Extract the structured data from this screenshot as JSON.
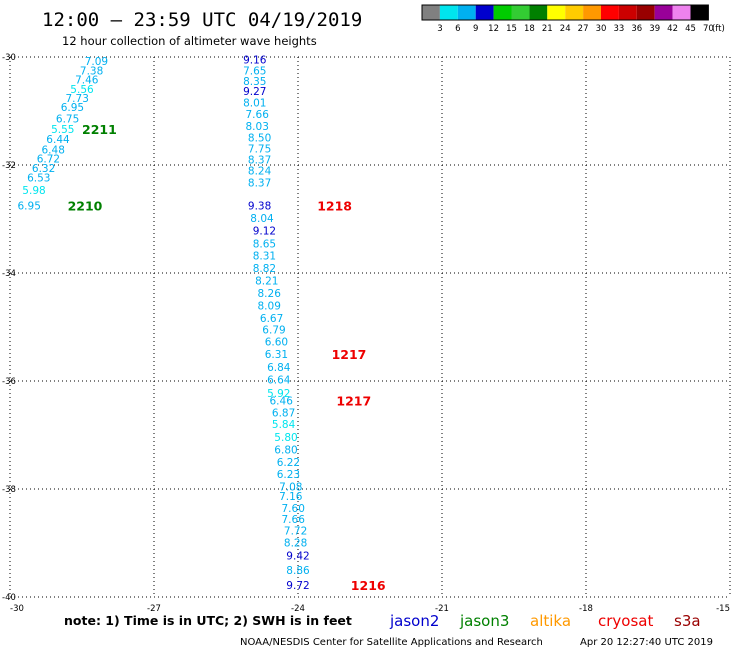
{
  "chart_data": {
    "type": "scatter",
    "title": "12:00 – 23:59 UTC 04/19/2019",
    "subtitle": "12 hour collection of altimeter wave heights",
    "xlim": [
      -30,
      -15
    ],
    "ylim": [
      -40,
      -30
    ],
    "x_ticks": [
      "-30",
      "-27",
      "-24",
      "-21",
      "-18",
      "-15"
    ],
    "y_ticks": [
      "-30",
      "-32",
      "-34",
      "-36",
      "-38",
      "-40"
    ],
    "grid": true,
    "colorbar": {
      "labels": [
        "3",
        "6",
        "9",
        "12",
        "15",
        "18",
        "21",
        "24",
        "27",
        "30",
        "33",
        "36",
        "39",
        "42",
        "45",
        "70"
      ],
      "unit": "(ft)",
      "colors": [
        "#808080",
        "#00e5ee",
        "#00b0f0",
        "#0000cd",
        "#00cc00",
        "#33cc33",
        "#008000",
        "#ffff00",
        "#ffcc00",
        "#ff9900",
        "#ff0000",
        "#cc0000",
        "#990000",
        "#990099",
        "#ee82ee",
        "#000000"
      ]
    },
    "series": [
      {
        "name": "2211",
        "satellite": "jason3",
        "label_pos": {
          "x": -28.5,
          "y": -31.33
        },
        "points": [
          {
            "x": -28.2,
            "y": -30.07,
            "v": "7.09"
          },
          {
            "x": -28.3,
            "y": -30.25,
            "v": "7.38"
          },
          {
            "x": -28.4,
            "y": -30.42,
            "v": "7.46"
          },
          {
            "x": -28.5,
            "y": -30.59,
            "v": "5.56"
          },
          {
            "x": -28.6,
            "y": -30.76,
            "v": "7.73"
          },
          {
            "x": -28.7,
            "y": -30.93,
            "v": "6.95"
          },
          {
            "x": -28.8,
            "y": -31.14,
            "v": "6.75"
          },
          {
            "x": -28.9,
            "y": -31.33,
            "v": "5.55"
          },
          {
            "x": -29.0,
            "y": -31.52,
            "v": "6.44"
          },
          {
            "x": -29.1,
            "y": -31.71,
            "v": "6.48"
          }
        ]
      },
      {
        "name": "2210",
        "satellite": "jason3",
        "label_pos": {
          "x": -28.8,
          "y": -32.75
        },
        "points": [
          {
            "x": -29.2,
            "y": -31.88,
            "v": "6.72"
          },
          {
            "x": -29.3,
            "y": -32.06,
            "v": "6.32"
          },
          {
            "x": -29.4,
            "y": -32.23,
            "v": "6.53"
          },
          {
            "x": -29.5,
            "y": -32.46,
            "v": "5.98"
          },
          {
            "x": -29.6,
            "y": -32.75,
            "v": "6.95"
          }
        ]
      },
      {
        "name": "1218",
        "satellite": "cryosat",
        "label_pos": {
          "x": -23.6,
          "y": -32.75
        },
        "points": [
          {
            "x": -24.9,
            "y": -30.05,
            "v": "9.16"
          },
          {
            "x": -24.9,
            "y": -30.25,
            "v": "7.65"
          },
          {
            "x": -24.9,
            "y": -30.44,
            "v": "8.35"
          },
          {
            "x": -24.9,
            "y": -30.63,
            "v": "9.27"
          },
          {
            "x": -24.9,
            "y": -30.84,
            "v": "8.01"
          },
          {
            "x": -24.85,
            "y": -31.06,
            "v": "7.66"
          },
          {
            "x": -24.85,
            "y": -31.28,
            "v": "8.03"
          },
          {
            "x": -24.8,
            "y": -31.49,
            "v": "8.50"
          },
          {
            "x": -24.8,
            "y": -31.69,
            "v": "7.75"
          },
          {
            "x": -24.8,
            "y": -31.9,
            "v": "8.37"
          },
          {
            "x": -24.8,
            "y": -32.1,
            "v": "8.24"
          },
          {
            "x": -24.8,
            "y": -32.32,
            "v": "8.37"
          },
          {
            "x": -24.8,
            "y": -32.75,
            "v": "9.38"
          },
          {
            "x": -24.75,
            "y": -32.98,
            "v": "8.04"
          },
          {
            "x": -24.7,
            "y": -33.21,
            "v": "9.12"
          },
          {
            "x": -24.7,
            "y": -33.45,
            "v": "8.65"
          },
          {
            "x": -24.7,
            "y": -33.68,
            "v": "8.31"
          }
        ]
      },
      {
        "name": "1217",
        "satellite": "cryosat",
        "label_pos": {
          "x": -23.3,
          "y": -35.5
        },
        "points": [
          {
            "x": -24.7,
            "y": -33.91,
            "v": "8.82"
          },
          {
            "x": -24.65,
            "y": -34.14,
            "v": "8.21"
          },
          {
            "x": -24.6,
            "y": -34.37,
            "v": "8.26"
          },
          {
            "x": -24.6,
            "y": -34.6,
            "v": "8.09"
          },
          {
            "x": -24.55,
            "y": -34.83,
            "v": "6.67"
          },
          {
            "x": -24.5,
            "y": -35.05,
            "v": "6.79"
          },
          {
            "x": -24.45,
            "y": -35.27,
            "v": "6.60"
          },
          {
            "x": -24.45,
            "y": -35.5,
            "v": "6.31"
          },
          {
            "x": -24.4,
            "y": -35.74,
            "v": "6.84"
          },
          {
            "x": -24.4,
            "y": -35.97,
            "v": "6.64"
          },
          {
            "x": -24.4,
            "y": -36.22,
            "v": "5.92"
          }
        ]
      },
      {
        "name": "1217",
        "satellite": "cryosat",
        "label_pos": {
          "x": -23.2,
          "y": -36.36
        },
        "points": [
          {
            "x": -24.35,
            "y": -36.36,
            "v": "6.46"
          },
          {
            "x": -24.3,
            "y": -36.58,
            "v": "6.87"
          },
          {
            "x": -24.3,
            "y": -36.8,
            "v": "5.84"
          },
          {
            "x": -24.25,
            "y": -37.04,
            "v": "5.80"
          },
          {
            "x": -24.25,
            "y": -37.27,
            "v": "6.80"
          },
          {
            "x": -24.2,
            "y": -37.5,
            "v": "6.22"
          },
          {
            "x": -24.2,
            "y": -37.72,
            "v": "6.23"
          },
          {
            "x": -24.15,
            "y": -37.95,
            "v": "7.08"
          }
        ]
      },
      {
        "name": "1216",
        "satellite": "cryosat",
        "label_pos": {
          "x": -22.9,
          "y": -39.78
        },
        "points": [
          {
            "x": -24.15,
            "y": -38.13,
            "v": "7.16"
          },
          {
            "x": -24.1,
            "y": -38.35,
            "v": "7.60"
          },
          {
            "x": -24.1,
            "y": -38.56,
            "v": "7.66"
          },
          {
            "x": -24.05,
            "y": -38.77,
            "v": "7.72"
          },
          {
            "x": -24.05,
            "y": -38.99,
            "v": "8.28"
          },
          {
            "x": -24.0,
            "y": -39.23,
            "v": "9.42"
          },
          {
            "x": -24.0,
            "y": -39.5,
            "v": "8.86"
          },
          {
            "x": -24.0,
            "y": -39.78,
            "v": "9.72"
          }
        ]
      }
    ],
    "note": "note: 1) Time is in UTC; 2) SWH is in feet",
    "satellites": [
      {
        "key": "jason2",
        "label": "jason2",
        "color": "#0000cd"
      },
      {
        "key": "jason3",
        "label": "jason3",
        "color": "#008000"
      },
      {
        "key": "altika",
        "label": "altika",
        "color": "#ff9900"
      },
      {
        "key": "cryosat",
        "label": "cryosat",
        "color": "#ee0000"
      },
      {
        "key": "s3a",
        "label": "s3a",
        "color": "#990000"
      }
    ],
    "footer_left": "NOAA/NESDIS Center for Satellite Applications and Research",
    "footer_right": "Apr 20 12:27:40 UTC 2019"
  }
}
